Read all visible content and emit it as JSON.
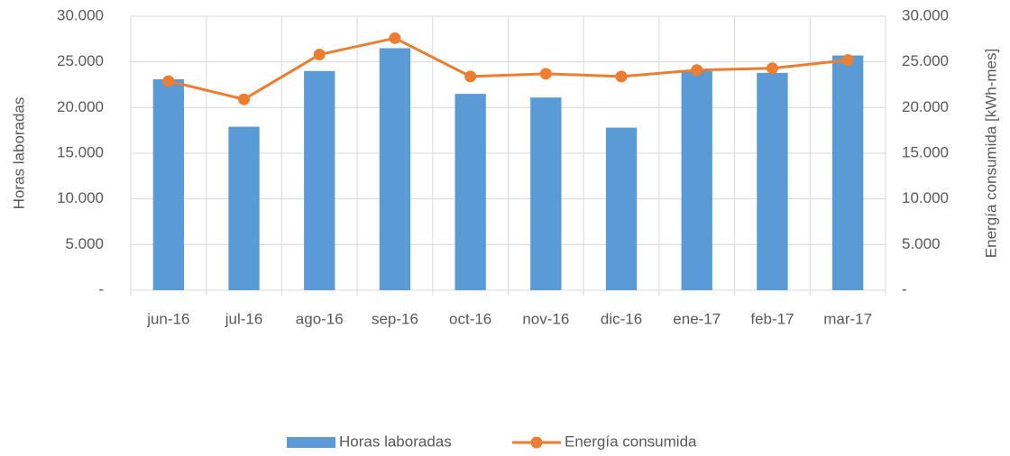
{
  "chart_data": {
    "type": "combo",
    "categories": [
      "jun-16",
      "jul-16",
      "ago-16",
      "sep-16",
      "oct-16",
      "nov-16",
      "dic-16",
      "ene-17",
      "feb-17",
      "mar-17"
    ],
    "series": [
      {
        "name": "Horas laboradas",
        "type": "bar",
        "color": "#5b9bd5",
        "values": [
          23100,
          17900,
          24000,
          26500,
          21500,
          21100,
          17800,
          24000,
          23800,
          25700
        ]
      },
      {
        "name": "Energía consumida",
        "type": "line",
        "axis": "y2",
        "color": "#ed7d31",
        "values": [
          22900,
          20900,
          25800,
          27600,
          23400,
          23700,
          23400,
          24100,
          24300,
          25200
        ]
      }
    ],
    "ylabel": "Horas laboradas",
    "y2label": "Energía consumida [kWh-mes]",
    "ylim": [
      0,
      30000
    ],
    "yticks": [
      {
        "value": 0,
        "label": "-"
      },
      {
        "value": 5000,
        "label": "5.000"
      },
      {
        "value": 10000,
        "label": "10.000"
      },
      {
        "value": 15000,
        "label": "15.000"
      },
      {
        "value": 20000,
        "label": "20.000"
      },
      {
        "value": 25000,
        "label": "25.000"
      },
      {
        "value": 30000,
        "label": "30.000"
      }
    ],
    "y2lim": [
      0,
      30000
    ],
    "y2ticks": [
      {
        "value": 0,
        "label": "-"
      },
      {
        "value": 5000,
        "label": "5.000"
      },
      {
        "value": 10000,
        "label": "10.000"
      },
      {
        "value": 15000,
        "label": "15.000"
      },
      {
        "value": 20000,
        "label": "20.000"
      },
      {
        "value": 25000,
        "label": "25.000"
      },
      {
        "value": 30000,
        "label": "30.000"
      }
    ],
    "grid": true,
    "legend": "bottom"
  }
}
